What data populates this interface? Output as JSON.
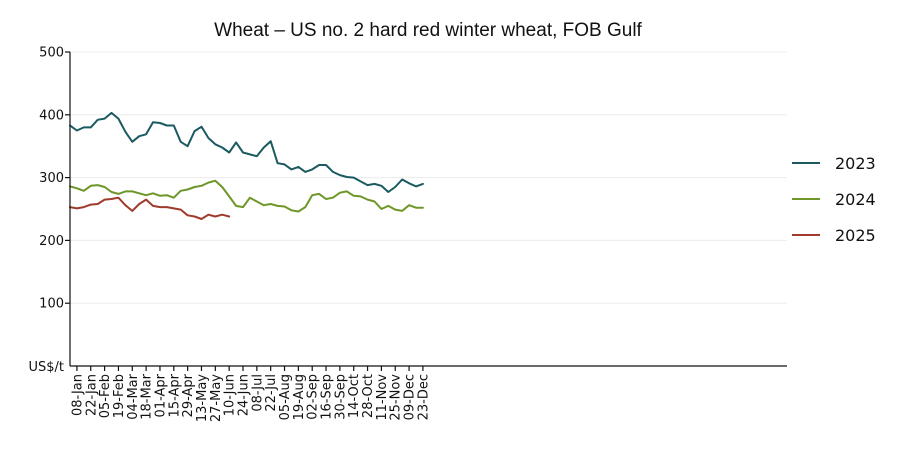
{
  "chart_data": {
    "type": "line",
    "title": "Wheat – US no. 2 hard red winter wheat, FOB Gulf",
    "ylabel": "US$/t",
    "xlabel": "",
    "ylim": [
      0,
      500
    ],
    "yticks": [
      100,
      200,
      300,
      400,
      500
    ],
    "grid": true,
    "legend_position": "right",
    "x_tick_labels": [
      "08-Jan",
      "22-Jan",
      "05-Feb",
      "19-Feb",
      "04-Mar",
      "18-Mar",
      "01-Apr",
      "15-Apr",
      "29-Apr",
      "13-May",
      "27-May",
      "10-Jun",
      "24-Jun",
      "08-Jul",
      "22-Jul",
      "05-Aug",
      "19-Aug",
      "02-Sep",
      "16-Sep",
      "30-Sep",
      "14-Oct",
      "28-Oct",
      "11-Nov",
      "25-Nov",
      "09-Dec",
      "23-Dec"
    ],
    "series": [
      {
        "name": "2023",
        "color": "#1b5a60",
        "values": [
          383,
          375,
          380,
          380,
          392,
          394,
          403,
          394,
          373,
          357,
          366,
          369,
          388,
          387,
          383,
          383,
          357,
          350,
          374,
          381,
          363,
          353,
          348,
          340,
          356,
          340,
          337,
          334,
          348,
          358,
          323,
          321,
          313,
          317,
          309,
          313,
          320,
          320,
          309,
          304,
          301,
          300,
          294,
          288,
          290,
          287,
          277,
          285,
          297,
          291,
          286,
          290
        ]
      },
      {
        "name": "2024",
        "color": "#6e9628",
        "values": [
          286,
          283,
          279,
          287,
          288,
          285,
          277,
          274,
          278,
          278,
          275,
          272,
          275,
          271,
          272,
          268,
          279,
          281,
          285,
          287,
          292,
          295,
          285,
          270,
          255,
          253,
          268,
          262,
          256,
          258,
          255,
          254,
          248,
          246,
          253,
          272,
          274,
          266,
          268,
          276,
          278,
          271,
          270,
          265,
          262,
          250,
          255,
          249,
          247,
          256,
          252,
          252
        ]
      },
      {
        "name": "2025",
        "color": "#a03a2c",
        "values": [
          253,
          251,
          253,
          257,
          258,
          265,
          266,
          268,
          256,
          247,
          258,
          265,
          255,
          253,
          253,
          251,
          249,
          240,
          238,
          234,
          241,
          238,
          241,
          238
        ]
      }
    ]
  }
}
